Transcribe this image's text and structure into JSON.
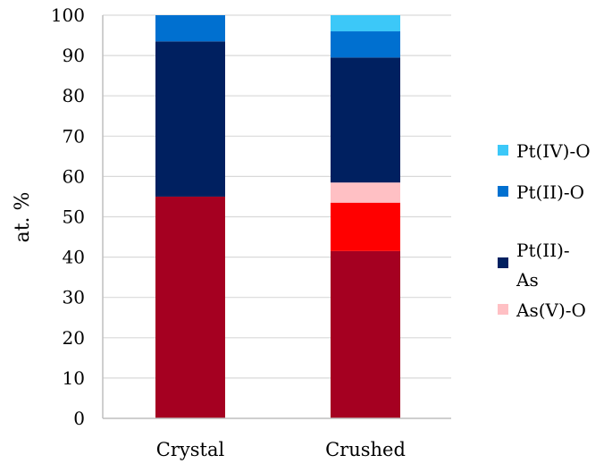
{
  "chart_data": {
    "type": "bar",
    "stacked": true,
    "categories": [
      "Crystal",
      "Crushed"
    ],
    "ylabel": "at. %",
    "xlabel": "",
    "ylim": [
      0,
      100
    ],
    "yticks": [
      0,
      10,
      20,
      30,
      40,
      50,
      60,
      70,
      80,
      90,
      100
    ],
    "grid": true,
    "legend_position": "right",
    "series": [
      {
        "color": "#a50021",
        "values": [
          55,
          41.5
        ]
      },
      {
        "color": "#ff0000",
        "values": [
          0,
          12
        ]
      },
      {
        "name": "As(V)-O",
        "color": "#ffc0c4",
        "values": [
          0,
          5
        ]
      },
      {
        "name": "Pt(II)-As",
        "color": "#002060",
        "values": [
          38.5,
          31
        ]
      },
      {
        "name": "Pt(II)-O",
        "color": "#0070d0",
        "values": [
          6.5,
          6.5
        ]
      },
      {
        "name": "Pt(IV)-O",
        "color": "#3cc8f8",
        "values": [
          0,
          4
        ]
      }
    ],
    "legend_order": [
      "Pt(IV)-O",
      "Pt(II)-O",
      "Pt(II)-As",
      "As(V)-O"
    ]
  }
}
